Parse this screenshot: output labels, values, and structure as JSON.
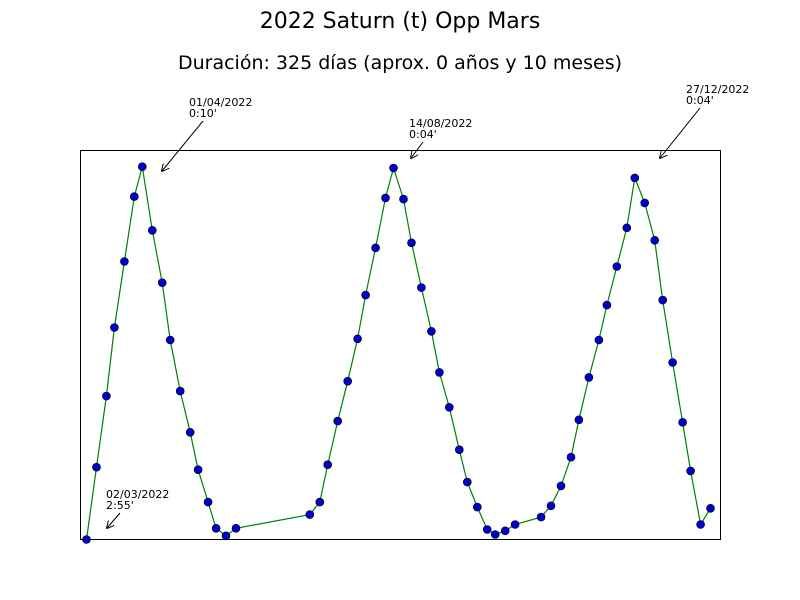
{
  "chart_data": {
    "type": "line",
    "title": "2022 Saturn (t) Opp Mars",
    "subtitle": "Duración: 325 días (aprox. 0 años y 10 meses)",
    "xlabel": "",
    "ylabel": "",
    "grid": false,
    "line_color": "#008000",
    "marker_color": "#0000cc",
    "x_range": [
      -3,
      318
    ],
    "y_range": [
      0.0,
      3.12
    ],
    "series": [
      {
        "x": [
          0,
          5,
          10,
          14,
          19,
          24,
          28,
          33,
          38,
          42,
          47,
          52,
          56,
          61,
          65,
          70,
          75,
          112,
          117,
          121,
          126,
          131,
          136,
          140,
          145,
          150,
          154,
          159,
          163,
          168,
          173,
          177,
          182,
          187,
          191,
          196,
          201,
          205,
          210,
          215,
          228,
          233,
          238,
          243,
          247,
          252,
          257,
          261,
          266,
          271,
          275,
          280,
          285,
          289,
          294,
          299,
          303,
          308,
          313
        ],
        "y": [
          0.0,
          0.58,
          1.15,
          1.7,
          2.23,
          2.75,
          2.99,
          2.48,
          2.06,
          1.6,
          1.19,
          0.86,
          0.56,
          0.3,
          0.09,
          0.03,
          0.09,
          0.2,
          0.3,
          0.6,
          0.95,
          1.27,
          1.61,
          1.96,
          2.34,
          2.74,
          2.98,
          2.73,
          2.38,
          2.02,
          1.67,
          1.34,
          1.06,
          0.72,
          0.46,
          0.26,
          0.08,
          0.04,
          0.07,
          0.12,
          0.18,
          0.27,
          0.43,
          0.66,
          0.96,
          1.3,
          1.6,
          1.88,
          2.19,
          2.5,
          2.9,
          2.7,
          2.4,
          1.92,
          1.42,
          0.94,
          0.55,
          0.12,
          0.25
        ]
      }
    ],
    "annotations": [
      {
        "date": "02/03/2022",
        "value": "2:55'"
      },
      {
        "date": "01/04/2022",
        "value": "0:10'"
      },
      {
        "date": "14/08/2022",
        "value": "0:04'"
      },
      {
        "date": "27/12/2022",
        "value": "0:04'"
      }
    ]
  }
}
